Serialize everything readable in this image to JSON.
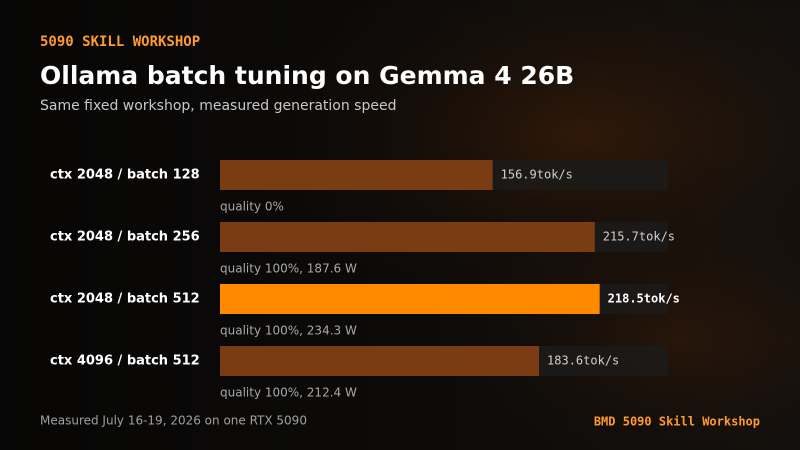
{
  "chart_data": {
    "type": "bar",
    "eyebrow": "5090 SKILL WORKSHOP",
    "title": "Ollama batch tuning on Gemma 4 26B",
    "subtitle": "Same fixed workshop, measured generation speed",
    "categories": [
      "ctx 2048 / batch 128",
      "ctx 2048 / batch 256",
      "ctx 2048 / batch 512",
      "ctx 4096 / batch 512"
    ],
    "values": [
      156.9,
      215.7,
      218.5,
      183.6
    ],
    "value_labels": [
      "156.9tok/s",
      "215.7tok/s",
      "218.5tok/s",
      "183.6tok/s"
    ],
    "notes": [
      "quality 0%",
      "quality 100%, 187.6 W",
      "quality 100%, 234.3 W",
      "quality 100%, 212.4 W"
    ],
    "colors": [
      "#7a3c12",
      "#7a3c12",
      "#ff8a00",
      "#7a3c12"
    ],
    "footer": "Measured July 16-19, 2026 on one RTX 5090",
    "brand": "BMD 5090 Skill Workshop"
  }
}
